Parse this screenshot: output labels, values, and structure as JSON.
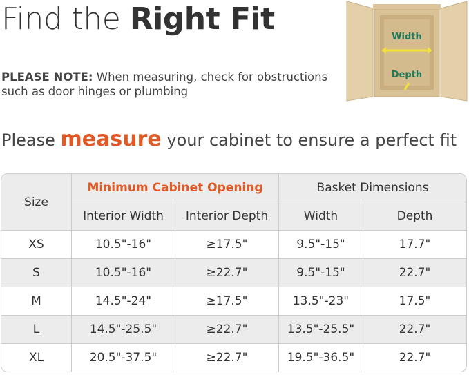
{
  "title": {
    "light": "Find the ",
    "bold": "Right Fit"
  },
  "note": {
    "label": "PLEASE NOTE:",
    "text": " When measuring, check for obstructions such as door hinges or plumbing"
  },
  "instruction": {
    "before": "Please ",
    "highlight": "measure",
    "after": " your cabinet to ensure a perfect fit"
  },
  "image": {
    "width_label": "Width",
    "depth_label": "Depth"
  },
  "colors": {
    "accent": "#e05a26",
    "label_green": "#1f7a5a",
    "arrow_yellow": "#f2e13a"
  },
  "table": {
    "size_header": "Size",
    "group1": "Minimum Cabinet Opening",
    "group2": "Basket Dimensions",
    "columns": [
      "Interior Width",
      "Interior Depth",
      "Width",
      "Depth"
    ],
    "rows": [
      [
        "XS",
        "10.5\"-16\"",
        "≥17.5\"",
        "9.5\"-15\"",
        "17.7\""
      ],
      [
        "S",
        "10.5\"-16\"",
        "≥22.7\"",
        "9.5\"-15\"",
        "22.7\""
      ],
      [
        "M",
        "14.5\"-24\"",
        "≥17.5\"",
        "13.5\"-23\"",
        "17.5\""
      ],
      [
        "L",
        "14.5\"-25.5\"",
        "≥22.7\"",
        "13.5\"-25.5\"",
        "22.7\""
      ],
      [
        "XL",
        "20.5\"-37.5\"",
        "≥22.7\"",
        "19.5\"-36.5\"",
        "22.7\""
      ]
    ]
  }
}
